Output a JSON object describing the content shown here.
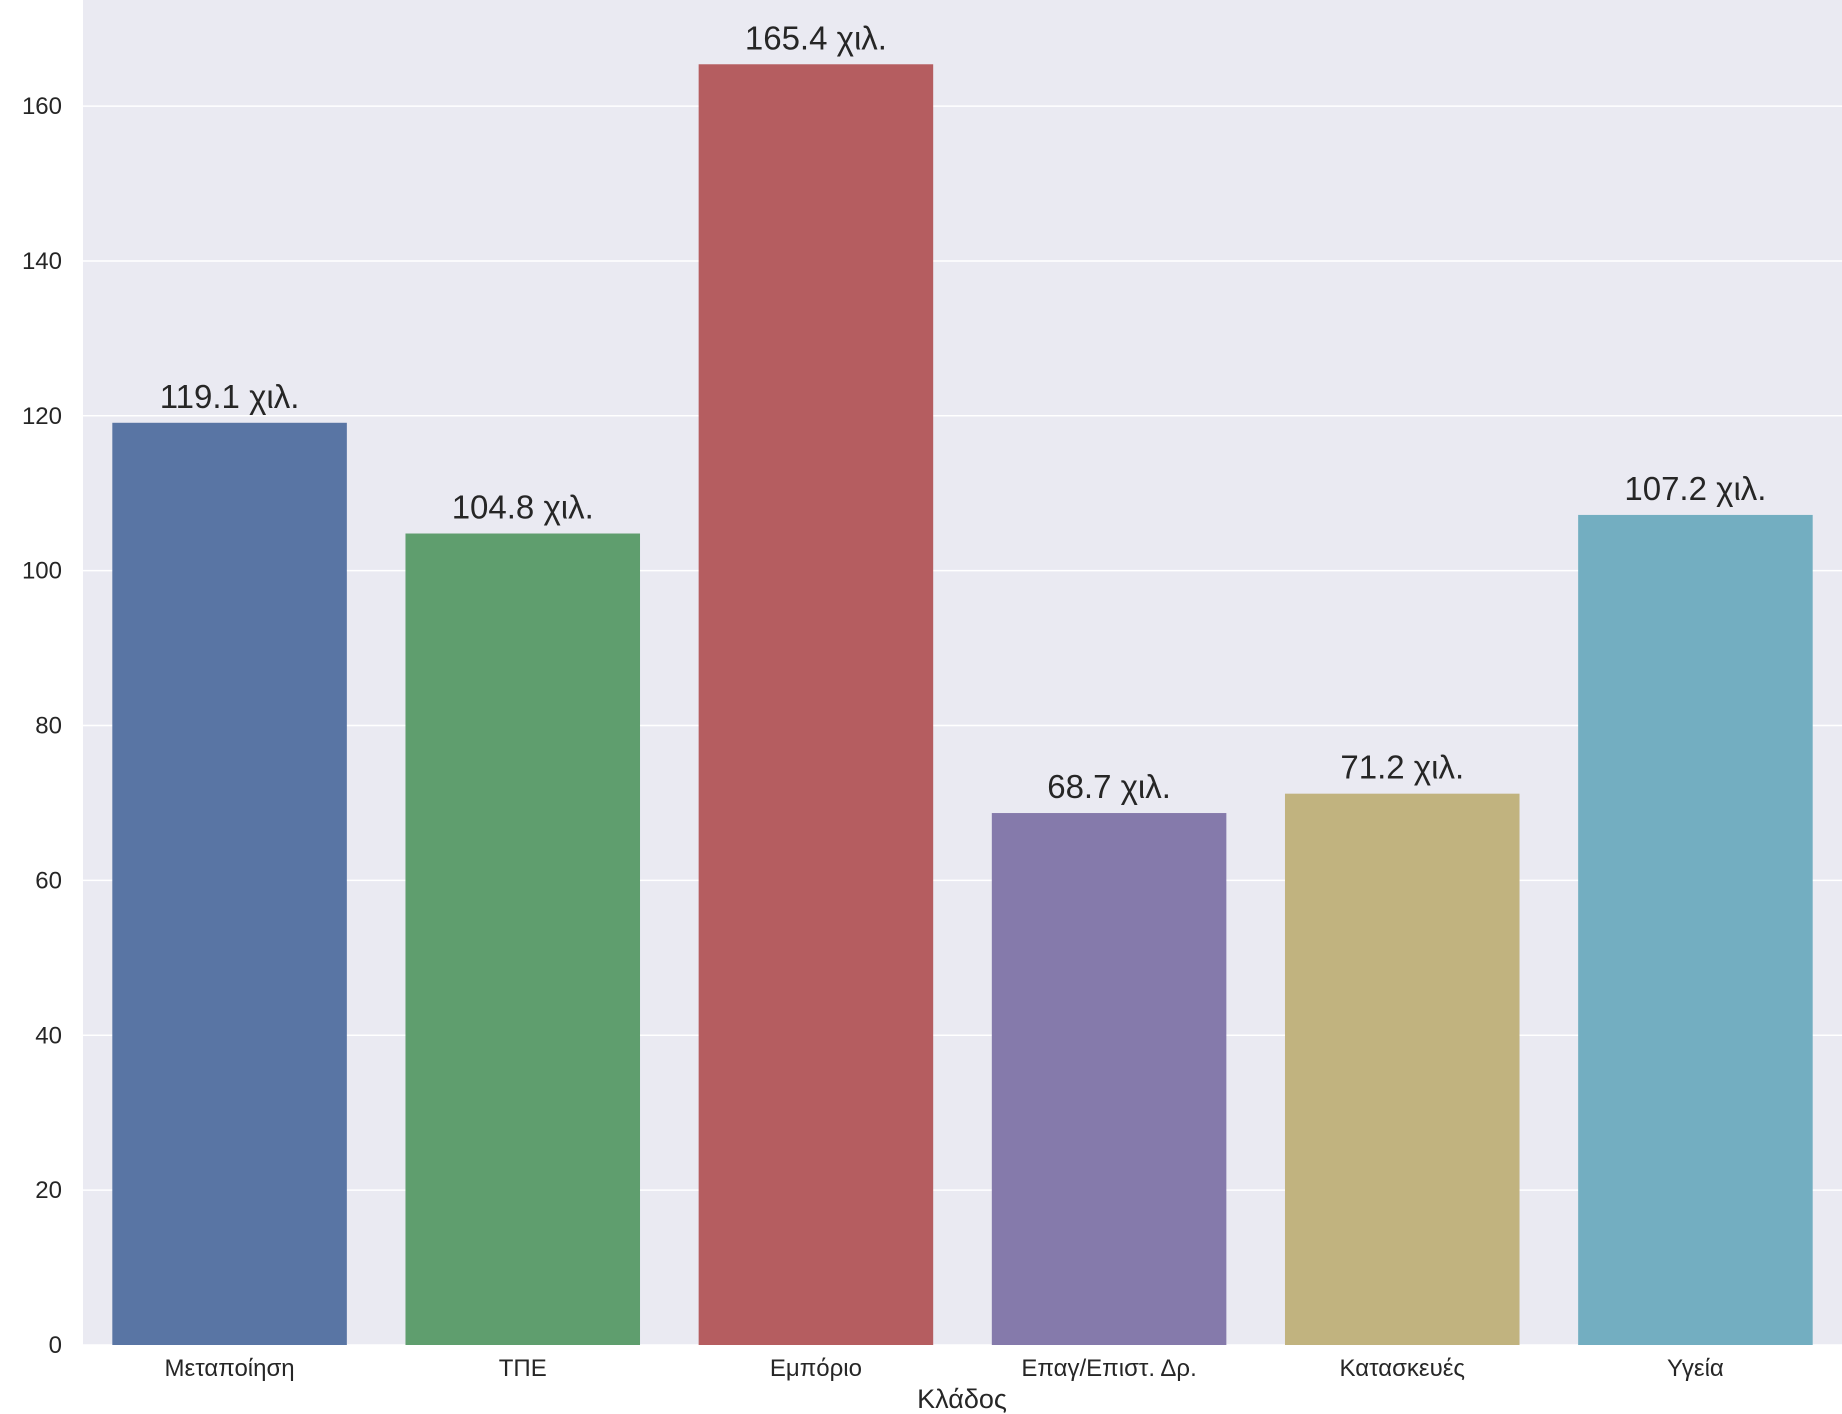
{
  "chart_data": {
    "type": "bar",
    "title": "",
    "xlabel": "Κλάδος",
    "ylabel": "",
    "categories": [
      "Μεταποίηση",
      "ΤΠΕ",
      "Εμπόριο",
      "Επαγ/Επιστ. Δρ.",
      "Κατασκευές",
      "Υγεία"
    ],
    "values": [
      119.1,
      104.8,
      165.4,
      68.7,
      71.2,
      107.2
    ],
    "data_labels": [
      "119.1 χιλ.",
      "104.8 χιλ.",
      "165.4 χιλ.",
      "68.7 χιλ.",
      "71.2 χιλ.",
      "107.2 χιλ."
    ],
    "colors": [
      "#5975a4",
      "#5f9e6e",
      "#b55d60",
      "#857aab",
      "#c1b37f",
      "#73aec1"
    ],
    "yticks": [
      0,
      20,
      40,
      60,
      80,
      100,
      120,
      140,
      160
    ],
    "ylim": [
      0,
      173.7
    ],
    "grid": true,
    "background": "#eaeaf2",
    "legend": "none"
  }
}
